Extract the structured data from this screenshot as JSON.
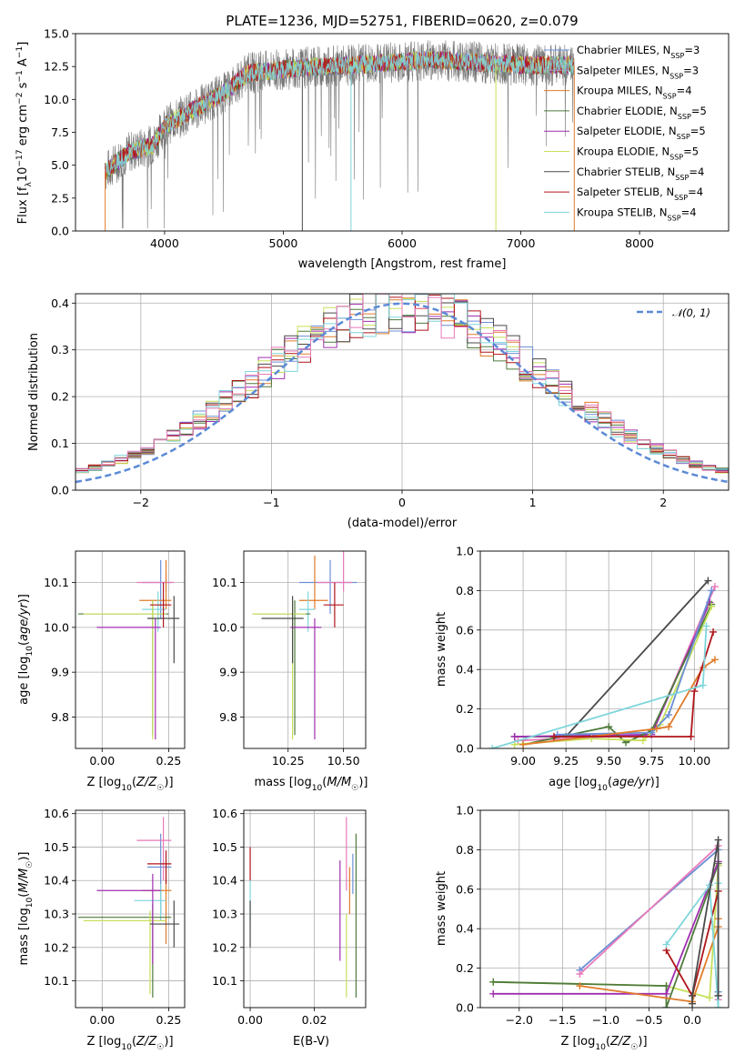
{
  "figure": {
    "title": "PLATE=1236, MJD=52751, FIBERID=0620, z=0.079",
    "colors": [
      "#6b8fd6",
      "#9aa8c8",
      "#e07b2a",
      "#4e7a3c",
      "#a02fb0",
      "#c7e05a",
      "#4a4a4a",
      "#b0151b",
      "#7fd6db",
      "#e879b9"
    ]
  },
  "chart_data": [
    {
      "id": "spectrum",
      "type": "line",
      "title": "PLATE=1236, MJD=52751, FIBERID=0620, z=0.079",
      "xlabel": "wavelength [Angstrom, rest frame]",
      "ylabel": "Flux [f_λ10^-17 erg cm^-2 s^-1 A^-1]",
      "xlim": [
        3250,
        8750
      ],
      "ylim": [
        0,
        15
      ],
      "xticks": [
        4000,
        5000,
        6000,
        7000,
        8000
      ],
      "yticks": [
        0.0,
        2.5,
        5.0,
        7.5,
        10.0,
        12.5,
        15.0
      ],
      "x_range_data": [
        3500,
        7450
      ],
      "anchors_wavelength": [
        3500,
        3700,
        3900,
        4000,
        4100,
        4300,
        4500,
        4700,
        5000,
        5300,
        5600,
        5900,
        6200,
        6500,
        6800,
        7100,
        7450
      ],
      "anchors_flux": [
        4.5,
        6.0,
        6.5,
        8.0,
        8.5,
        9.5,
        10.5,
        12.0,
        12.3,
        12.5,
        12.6,
        12.8,
        13.0,
        12.9,
        12.7,
        12.6,
        12.6
      ],
      "grid": false,
      "legend_position": "right",
      "legend": [
        {
          "label": "Chabrier MILES, N",
          "sub": "SSP",
          "value": "=3"
        },
        {
          "label": "Salpeter MILES, N",
          "sub": "SSP",
          "value": "=3"
        },
        {
          "label": "Kroupa MILES, N",
          "sub": "SSP",
          "value": "=4"
        },
        {
          "label": "Chabrier ELODIE, N",
          "sub": "SSP",
          "value": "=5"
        },
        {
          "label": "Salpeter ELODIE, N",
          "sub": "SSP",
          "value": "=5"
        },
        {
          "label": "Kroupa ELODIE, N",
          "sub": "SSP",
          "value": "=5"
        },
        {
          "label": "Chabrier STELIB, N",
          "sub": "SSP",
          "value": "=4"
        },
        {
          "label": "Salpeter STELIB, N",
          "sub": "SSP",
          "value": "=4"
        },
        {
          "label": "Kroupa STELIB, N",
          "sub": "SSP",
          "value": "=4"
        }
      ]
    },
    {
      "id": "residuals",
      "type": "bar",
      "xlabel": "(data-model)/error",
      "ylabel": "Normed distribution",
      "xlim": [
        -2.5,
        2.5
      ],
      "ylim": [
        0,
        0.42
      ],
      "xticks": [
        -2,
        -1,
        0,
        1,
        2
      ],
      "xticklabels": [
        "−2",
        "−1",
        "0",
        "1",
        "2"
      ],
      "yticks": [
        0.0,
        0.1,
        0.2,
        0.3,
        0.4
      ],
      "bin_start": -2.5,
      "bin_width": 0.1,
      "grid": true,
      "legend_position": "top-right",
      "legend_label": "𝒩(0, 1)",
      "gaussian_mean": 0,
      "gaussian_sigma": 1
    },
    {
      "id": "age_vs_z",
      "type": "scatter",
      "xlabel": "Z [log10(Z/Z☉)]",
      "ylabel": "age  [log10(age/yr)]",
      "xlim": [
        -0.1,
        0.31
      ],
      "ylim": [
        9.73,
        10.17
      ],
      "xticks": [
        0.0,
        0.25
      ],
      "xticklabels": [
        "0.00",
        "0.25"
      ],
      "yticks": [
        9.8,
        9.9,
        10.0,
        10.1
      ],
      "yticklabels": [
        "9.8",
        "9.9",
        "10.0",
        "10.1"
      ],
      "grid": true,
      "points": [
        {
          "x": 0.22,
          "y": 10.1,
          "xerr": [
            0.07,
            0.04
          ],
          "yerr": [
            0.08,
            0.05
          ],
          "c": 0
        },
        {
          "x": 0.24,
          "y": 10.1,
          "xerr": [
            0.11,
            0.03
          ],
          "yerr": [
            0.02,
            0.02
          ],
          "c": 9
        },
        {
          "x": 0.24,
          "y": 10.06,
          "xerr": [
            0.1,
            0.02
          ],
          "yerr": [
            0.02,
            0.09
          ],
          "c": 2
        },
        {
          "x": 0.21,
          "y": 10.04,
          "xerr": [
            0.06,
            0.03
          ],
          "yerr": [
            0.05,
            0.04
          ],
          "c": 8
        },
        {
          "x": 0.19,
          "y": 10.03,
          "xerr": [
            0.28,
            0.06
          ],
          "yerr": [
            0.27,
            0.03
          ],
          "c": 3
        },
        {
          "x": 0.19,
          "y": 10.03,
          "xerr": [
            0.26,
            0.05
          ],
          "yerr": [
            0.28,
            0.03
          ],
          "c": 5
        },
        {
          "x": 0.23,
          "y": 10.05,
          "xerr": [
            0.05,
            0.03
          ],
          "yerr": [
            0.05,
            0.05
          ],
          "c": 7
        },
        {
          "x": 0.2,
          "y": 10.0,
          "xerr": [
            0.22,
            0.02
          ],
          "yerr": [
            0.25,
            0.02
          ],
          "c": 4
        },
        {
          "x": 0.27,
          "y": 10.02,
          "xerr": [
            0.1,
            0.02
          ],
          "yerr": [
            0.1,
            0.05
          ],
          "c": 6
        }
      ]
    },
    {
      "id": "age_vs_mass",
      "type": "scatter",
      "xlabel": "mass [log10(M/M☉)]",
      "ylabel": "",
      "xlim": [
        10.05,
        10.6
      ],
      "ylim": [
        9.73,
        10.17
      ],
      "xticks": [
        10.25,
        10.5
      ],
      "xticklabels": [
        "10.25",
        "10.50"
      ],
      "yticks": [
        9.8,
        9.9,
        10.0,
        10.1
      ],
      "yticklabels": [
        "9.8",
        "9.9",
        "10.0",
        "10.1"
      ],
      "grid": true,
      "points": [
        {
          "x": 10.44,
          "y": 10.1,
          "xerr": [
            0.14,
            0.12
          ],
          "yerr": [
            0.07,
            0.05
          ],
          "c": 0
        },
        {
          "x": 10.5,
          "y": 10.1,
          "xerr": [
            0.12,
            0.04
          ],
          "yerr": [
            0.02,
            0.11
          ],
          "c": 9
        },
        {
          "x": 10.37,
          "y": 10.06,
          "xerr": [
            0.07,
            0.06
          ],
          "yerr": [
            0.02,
            0.1
          ],
          "c": 2
        },
        {
          "x": 10.34,
          "y": 10.04,
          "xerr": [
            0.04,
            0.03
          ],
          "yerr": [
            0.05,
            0.04
          ],
          "c": 8
        },
        {
          "x": 10.28,
          "y": 10.03,
          "xerr": [
            0.19,
            0.07
          ],
          "yerr": [
            0.27,
            0.03
          ],
          "c": 3
        },
        {
          "x": 10.27,
          "y": 10.03,
          "xerr": [
            0.18,
            0.06
          ],
          "yerr": [
            0.28,
            0.03
          ],
          "c": 5
        },
        {
          "x": 10.46,
          "y": 10.05,
          "xerr": [
            0.05,
            0.04
          ],
          "yerr": [
            0.05,
            0.05
          ],
          "c": 7
        },
        {
          "x": 10.37,
          "y": 10.0,
          "xerr": [
            0.11,
            0.03
          ],
          "yerr": [
            0.25,
            0.02
          ],
          "c": 4
        },
        {
          "x": 10.27,
          "y": 10.02,
          "xerr": [
            0.14,
            0.05
          ],
          "yerr": [
            0.1,
            0.05
          ],
          "c": 6
        }
      ]
    },
    {
      "id": "weight_vs_age",
      "type": "line",
      "xlabel": "age  [log10(age/yr)]",
      "ylabel": "mass weight",
      "xlim": [
        8.75,
        10.2
      ],
      "ylim": [
        0,
        1
      ],
      "xticks": [
        9.0,
        9.25,
        9.5,
        9.75,
        10.0
      ],
      "xticklabels": [
        "9.00",
        "9.25",
        "9.50",
        "9.75",
        "10.00"
      ],
      "yticks": [
        0.0,
        0.2,
        0.4,
        0.6,
        0.8,
        1.0
      ],
      "grid": true,
      "series": [
        {
          "c": 6,
          "x": [
            8.95,
            9.25,
            10.08
          ],
          "y": [
            0.06,
            0.06,
            0.85
          ]
        },
        {
          "c": 9,
          "x": [
            8.97,
            9.75,
            10.12
          ],
          "y": [
            0.04,
            0.07,
            0.82
          ]
        },
        {
          "c": 4,
          "x": [
            8.95,
            9.75,
            10.09
          ],
          "y": [
            0.06,
            0.07,
            0.74
          ]
        },
        {
          "c": 3,
          "x": [
            9.0,
            9.5,
            9.6,
            9.75,
            10.1
          ],
          "y": [
            0.02,
            0.11,
            0.03,
            0.09,
            0.73
          ]
        },
        {
          "c": 5,
          "x": [
            8.95,
            9.4,
            9.7,
            9.8,
            10.1
          ],
          "y": [
            0.02,
            0.05,
            0.04,
            0.12,
            0.72
          ]
        },
        {
          "c": 0,
          "x": [
            9.2,
            9.75,
            9.85,
            10.1
          ],
          "y": [
            0.07,
            0.08,
            0.17,
            0.8
          ]
        },
        {
          "c": 2,
          "x": [
            9.0,
            9.78,
            9.85,
            10.05,
            10.12
          ],
          "y": [
            0.02,
            0.1,
            0.11,
            0.41,
            0.45
          ]
        },
        {
          "c": 7,
          "x": [
            9.18,
            9.98,
            10.0,
            10.11
          ],
          "y": [
            0.06,
            0.06,
            0.29,
            0.59
          ]
        },
        {
          "c": 8,
          "x": [
            8.82,
            10.05,
            10.07
          ],
          "y": [
            0.0,
            0.32,
            0.62
          ]
        }
      ]
    },
    {
      "id": "mass_vs_z",
      "type": "scatter",
      "xlabel": "Z [log10(Z/Z☉)]",
      "ylabel": "mass [log10(M/M☉)]",
      "xlim": [
        -0.1,
        0.31
      ],
      "ylim": [
        10.02,
        10.61
      ],
      "xticks": [
        0.0,
        0.25
      ],
      "xticklabels": [
        "0.00",
        "0.25"
      ],
      "yticks": [
        10.1,
        10.2,
        10.3,
        10.4,
        10.5,
        10.6
      ],
      "yticklabels": [
        "10.1",
        "10.2",
        "10.3",
        "10.4",
        "10.5",
        "10.6"
      ],
      "grid": true,
      "points": [
        {
          "x": 0.22,
          "y": 10.44,
          "xerr": [
            0.05,
            0.04
          ],
          "yerr": [
            0.14,
            0.1
          ],
          "c": 0
        },
        {
          "x": 0.23,
          "y": 10.52,
          "xerr": [
            0.1,
            0.03
          ],
          "yerr": [
            0.12,
            0.07
          ],
          "c": 9
        },
        {
          "x": 0.24,
          "y": 10.37,
          "xerr": [
            0.09,
            0.02
          ],
          "yerr": [
            0.16,
            0.09
          ],
          "c": 2
        },
        {
          "x": 0.22,
          "y": 10.34,
          "xerr": [
            0.1,
            0.02
          ],
          "yerr": [
            0.06,
            0.05
          ],
          "c": 8
        },
        {
          "x": 0.19,
          "y": 10.29,
          "xerr": [
            0.28,
            0.07
          ],
          "yerr": [
            0.24,
            0.04
          ],
          "c": 3
        },
        {
          "x": 0.18,
          "y": 10.28,
          "xerr": [
            0.25,
            0.06
          ],
          "yerr": [
            0.22,
            0.03
          ],
          "c": 5
        },
        {
          "x": 0.24,
          "y": 10.45,
          "xerr": [
            0.07,
            0.02
          ],
          "yerr": [
            0.06,
            0.04
          ],
          "c": 7
        },
        {
          "x": 0.19,
          "y": 10.37,
          "xerr": [
            0.21,
            0.03
          ],
          "yerr": [
            0.22,
            0.05
          ],
          "c": 4
        },
        {
          "x": 0.27,
          "y": 10.27,
          "xerr": [
            0.09,
            0.02
          ],
          "yerr": [
            0.07,
            0.07
          ],
          "c": 6
        }
      ]
    },
    {
      "id": "mass_vs_ebv",
      "type": "scatter",
      "xlabel": "E(B-V)",
      "ylabel": "",
      "xlim": [
        -0.002,
        0.036
      ],
      "ylim": [
        10.02,
        10.61
      ],
      "xticks": [
        0.0,
        0.02
      ],
      "xticklabels": [
        "0.00",
        "0.02"
      ],
      "yticks": [
        10.1,
        10.2,
        10.3,
        10.4,
        10.5,
        10.6
      ],
      "yticklabels": [
        "10.1",
        "10.2",
        "10.3",
        "10.4",
        "10.5",
        "10.6"
      ],
      "grid": true,
      "points": [
        {
          "x": 0.0,
          "y": 10.45,
          "xerr": [
            0,
            0
          ],
          "yerr": [
            0.05,
            0.05
          ],
          "c": 7
        },
        {
          "x": 0.0,
          "y": 10.33,
          "xerr": [
            0,
            0
          ],
          "yerr": [
            0.05,
            0.07
          ],
          "c": 8
        },
        {
          "x": 0.0,
          "y": 10.27,
          "xerr": [
            0,
            0
          ],
          "yerr": [
            0.07,
            0.07
          ],
          "c": 6
        },
        {
          "x": 0.028,
          "y": 10.31,
          "xerr": [
            0,
            0
          ],
          "yerr": [
            0.15,
            0.15
          ],
          "c": 4
        },
        {
          "x": 0.03,
          "y": 10.42,
          "xerr": [
            0,
            0
          ],
          "yerr": [
            0.05,
            0.17
          ],
          "c": 9
        },
        {
          "x": 0.03,
          "y": 10.27,
          "xerr": [
            0,
            0
          ],
          "yerr": [
            0.22,
            0.03
          ],
          "c": 5
        },
        {
          "x": 0.031,
          "y": 10.39,
          "xerr": [
            0,
            0
          ],
          "yerr": [
            0.09,
            0.05
          ],
          "c": 2
        },
        {
          "x": 0.032,
          "y": 10.44,
          "xerr": [
            0,
            0
          ],
          "yerr": [
            0.08,
            0.04
          ],
          "c": 0
        },
        {
          "x": 0.033,
          "y": 10.29,
          "xerr": [
            0,
            0
          ],
          "yerr": [
            0.24,
            0.25
          ],
          "c": 3
        }
      ]
    },
    {
      "id": "weight_vs_z",
      "type": "line",
      "xlabel": "Z [log10(Z/Z☉)]",
      "ylabel": "mass weight",
      "xlim": [
        -2.45,
        0.42
      ],
      "ylim": [
        0,
        1
      ],
      "xticks": [
        -2.0,
        -1.5,
        -1.0,
        -0.5,
        0.0
      ],
      "xticklabels": [
        "−2.0",
        "−1.5",
        "−1.0",
        "−0.5",
        "0.0"
      ],
      "yticks": [
        0.0,
        0.2,
        0.4,
        0.6,
        0.8,
        1.0
      ],
      "grid": true,
      "series": [
        {
          "c": 5,
          "x": [
            -2.3,
            -0.3,
            0.2,
            0.3
          ],
          "y": [
            0.13,
            0.11,
            0.05,
            0.72
          ]
        },
        {
          "c": 3,
          "x": [
            -2.3,
            -0.3,
            -0.3,
            0.3
          ],
          "y": [
            0.13,
            0.11,
            0.0,
            0.73
          ]
        },
        {
          "c": 4,
          "x": [
            -2.3,
            -0.3,
            0.3
          ],
          "y": [
            0.07,
            0.07,
            0.74
          ]
        },
        {
          "c": 0,
          "x": [
            -1.3,
            0.3,
            0.3
          ],
          "y": [
            0.19,
            0.8,
            0.08
          ]
        },
        {
          "c": 9,
          "x": [
            -1.3,
            0.3,
            0.3
          ],
          "y": [
            0.17,
            0.82,
            0.04
          ]
        },
        {
          "c": 2,
          "x": [
            -1.3,
            0.0,
            0.3,
            0.3
          ],
          "y": [
            0.11,
            0.03,
            0.41,
            0.45
          ]
        },
        {
          "c": 7,
          "x": [
            -0.3,
            0.0,
            0.3,
            0.3
          ],
          "y": [
            0.29,
            0.06,
            0.59,
            0.06
          ]
        },
        {
          "c": 8,
          "x": [
            -0.3,
            0.2,
            0.3,
            0.3
          ],
          "y": [
            0.32,
            0.62,
            0.0,
            0.63
          ]
        },
        {
          "c": 6,
          "x": [
            0.0,
            0.0,
            0.3,
            0.3
          ],
          "y": [
            0.02,
            0.06,
            0.85,
            0.06
          ]
        }
      ]
    }
  ]
}
